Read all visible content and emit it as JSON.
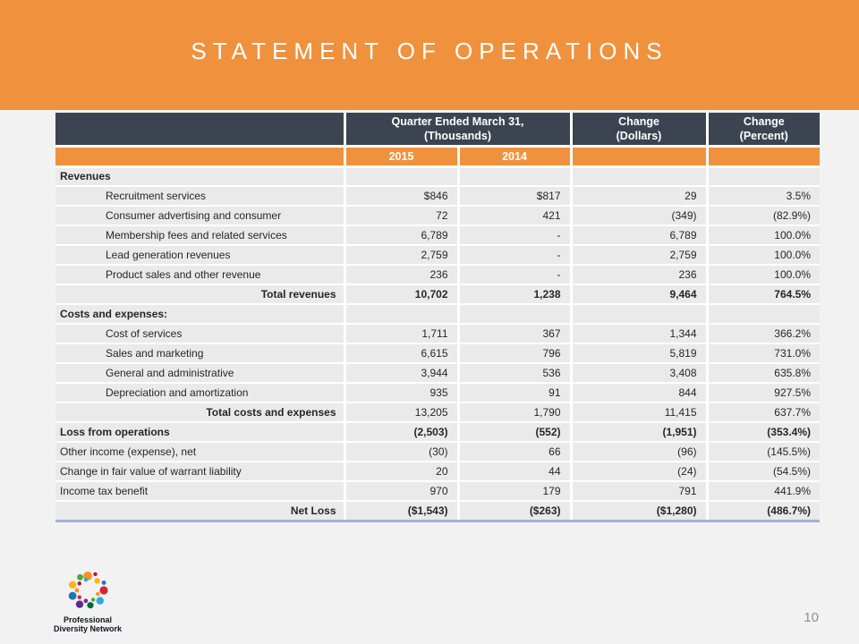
{
  "header": {
    "title": "STATEMENT OF OPERATIONS"
  },
  "colors": {
    "accent_orange": "#F0923D",
    "header_dark": "#3B4450",
    "row_gray": "#EAEAEA",
    "bottom_rule_blue": "#9FB4D2",
    "title_text": "#FFFFFF",
    "page_number_gray": "#8F8F8F"
  },
  "table": {
    "header": {
      "group_line1": "Quarter Ended March 31,",
      "group_line2": "(Thousands)",
      "change_dollars_line1": "Change",
      "change_dollars_line2": "(Dollars)",
      "change_percent_line1": "Change",
      "change_percent_line2": "(Percent)",
      "year_2015": "2015",
      "year_2014": "2014"
    },
    "rows": [
      {
        "label": "Revenues",
        "label_style": "section",
        "values_bold": false,
        "values": [
          "",
          "",
          "",
          ""
        ]
      },
      {
        "label": "Recruitment services",
        "label_style": "detail",
        "values_bold": false,
        "values": [
          "$846",
          "$817",
          "29",
          "3.5%"
        ]
      },
      {
        "label": "Consumer advertising and consumer",
        "label_style": "detail",
        "values_bold": false,
        "values": [
          "72",
          "421",
          "(349)",
          "(82.9%)"
        ]
      },
      {
        "label": "Membership fees and related services",
        "label_style": "detail",
        "values_bold": false,
        "values": [
          "6,789",
          "-",
          "6,789",
          "100.0%"
        ]
      },
      {
        "label": "Lead generation revenues",
        "label_style": "detail",
        "values_bold": false,
        "values": [
          "2,759",
          "-",
          "2,759",
          "100.0%"
        ]
      },
      {
        "label": "Product sales and other revenue",
        "label_style": "detail",
        "values_bold": false,
        "values": [
          "236",
          "-",
          "236",
          "100.0%"
        ]
      },
      {
        "label": "Total revenues",
        "label_style": "total",
        "values_bold": true,
        "values": [
          "10,702",
          "1,238",
          "9,464",
          "764.5%"
        ]
      },
      {
        "label": "Costs and expenses:",
        "label_style": "section",
        "values_bold": false,
        "values": [
          "",
          "",
          "",
          ""
        ]
      },
      {
        "label": "Cost of services",
        "label_style": "detail",
        "values_bold": false,
        "values": [
          "1,711",
          "367",
          "1,344",
          "366.2%"
        ]
      },
      {
        "label": "Sales and marketing",
        "label_style": "detail",
        "values_bold": false,
        "values": [
          "6,615",
          "796",
          "5,819",
          "731.0%"
        ]
      },
      {
        "label": "General and administrative",
        "label_style": "detail",
        "values_bold": false,
        "values": [
          "3,944",
          "536",
          "3,408",
          "635.8%"
        ]
      },
      {
        "label": "Depreciation and amortization",
        "label_style": "detail",
        "values_bold": false,
        "values": [
          "935",
          "91",
          "844",
          "927.5%"
        ]
      },
      {
        "label": "Total costs and expenses",
        "label_style": "total",
        "values_bold": false,
        "values": [
          "13,205",
          "1,790",
          "11,415",
          "637.7%"
        ]
      },
      {
        "label": "Loss from operations",
        "label_style": "flush-bold",
        "values_bold": true,
        "values": [
          "(2,503)",
          "(552)",
          "(1,951)",
          "(353.4%)"
        ]
      },
      {
        "label": "Other income (expense), net",
        "label_style": "flush",
        "values_bold": false,
        "values": [
          "(30)",
          "66",
          "(96)",
          "(145.5%)"
        ]
      },
      {
        "label": "Change in fair value of warrant liability",
        "label_style": "flush",
        "values_bold": false,
        "values": [
          "20",
          "44",
          "(24)",
          "(54.5%)"
        ]
      },
      {
        "label": "Income tax benefit",
        "label_style": "flush",
        "values_bold": false,
        "values": [
          "970",
          "179",
          "791",
          "441.9%"
        ]
      },
      {
        "label": "Net Loss",
        "label_style": "total",
        "values_bold": true,
        "values": [
          "($1,543)",
          "($263)",
          "($1,280)",
          "(486.7%)"
        ]
      }
    ]
  },
  "footer": {
    "logo": {
      "line1": "Professional",
      "line2": "Diversity Network",
      "dot_colors": [
        "#F6921E",
        "#C8102E",
        "#FDB515",
        "#1B75BC",
        "#D22630",
        "#F6921E",
        "#29ABE2",
        "#43B02A",
        "#046A38",
        "#89279B",
        "#5C2D91",
        "#D22630",
        "#1B75BC",
        "#F6921E",
        "#FDB515",
        "#A6192E",
        "#43B02A",
        "#29ABE2"
      ]
    },
    "page_number": "10"
  }
}
